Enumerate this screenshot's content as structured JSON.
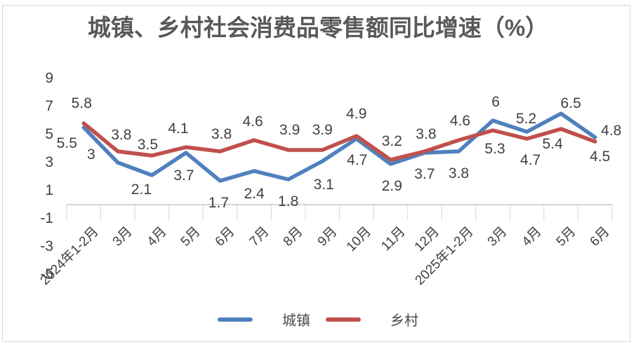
{
  "title": "城镇、乡村社会消费品零售额同比增速（%）",
  "chart_data": {
    "type": "line",
    "categories": [
      "2024年1-2月",
      "3月",
      "4月",
      "5月",
      "6月",
      "7月",
      "8月",
      "9月",
      "10月",
      "11月",
      "12月",
      "2025年1-2月",
      "3月",
      "4月",
      "5月",
      "6月"
    ],
    "series": [
      {
        "name": "城镇",
        "color": "#4F81BD",
        "values": [
          5.5,
          3,
          2.1,
          3.7,
          1.7,
          2.4,
          1.8,
          3.1,
          4.7,
          2.9,
          3.7,
          3.8,
          6,
          5.2,
          6.5,
          4.8
        ]
      },
      {
        "name": "乡村",
        "color": "#C0504D",
        "values": [
          5.8,
          3.8,
          3.5,
          4.1,
          3.8,
          4.6,
          3.9,
          3.9,
          4.9,
          3.2,
          3.8,
          4.6,
          5.3,
          4.7,
          5.4,
          4.5
        ]
      }
    ],
    "yticks": [
      9,
      7,
      5,
      3,
      1,
      -1,
      -3,
      -5
    ],
    "ylim": [
      -5,
      9
    ],
    "grid": false,
    "data_labels": true,
    "legend_position": "bottom",
    "axis_color": "#c8c8c8",
    "tick_color": "#d9d9d9",
    "label_color": "#404040",
    "title_color": "#595959"
  }
}
